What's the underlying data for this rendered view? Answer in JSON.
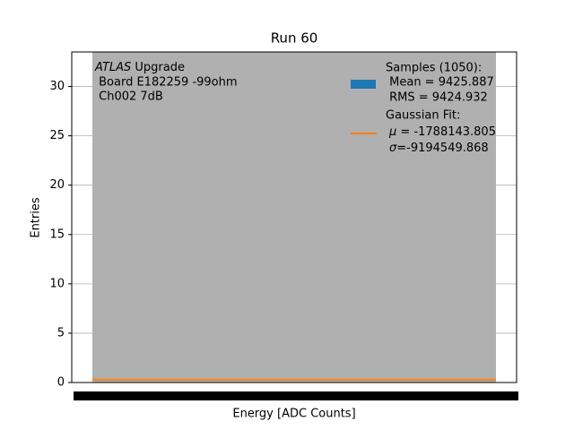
{
  "chart_data": {
    "type": "histogram",
    "title": "Run 60",
    "x_label": "Energy [ADC Counts]",
    "y_label": "Entries",
    "ylim": [
      0,
      33.5
    ],
    "yticks": [
      0,
      5,
      10,
      15,
      20,
      25,
      30
    ],
    "grid": true,
    "fill_color": "#b0b0b0",
    "annotation": {
      "italic": "ATLAS",
      "text": " Upgrade",
      "lines": [
        " Board E182259 -99ohm",
        " Ch002 7dB"
      ]
    },
    "samples": {
      "name": "Samples (1050):",
      "mean": " Mean = 9425.887",
      "rms": " RMS = 9424.932",
      "color": "#1f77b4"
    },
    "fit": {
      "name": "Gaussian Fit:",
      "mu_symbol": "μ",
      "mu": " = -1788143.805",
      "sigma_symbol": "σ",
      "sigma": "=-9194549.868",
      "color": "#ff7f0e",
      "level": 0.3
    }
  }
}
